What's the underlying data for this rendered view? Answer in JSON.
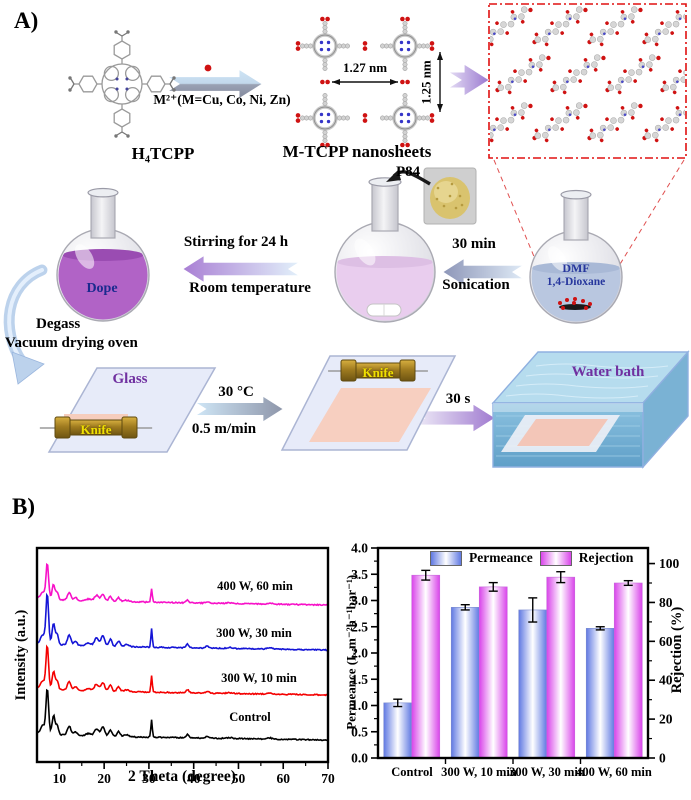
{
  "figure": {
    "panel_a_label": "A)",
    "panel_b_label": "B)"
  },
  "panelA": {
    "h4tcpp_label": "H₄TCPP",
    "metal_text": "M²⁺(M=Cu, Co, Ni, Zn)",
    "nanosheets_label": "M-TCPP nanosheets",
    "dim_horizontal": "1.27 nm",
    "dim_vertical": "1.25 nm",
    "p84_label": "P84",
    "dmf_line1": "DMF",
    "dmf_line2": "1,4-Dioxane",
    "sonication_time": "30 min",
    "sonication_label": "Sonication",
    "stirring_line1": "Stirring for 24 h",
    "stirring_line2": "Room temperature",
    "dope_label": "Dope",
    "degas_line1": "Degass",
    "degas_line2": "Vacuum drying oven",
    "glass_label": "Glass",
    "knife_label_1": "Knife",
    "knife_label_2": "Knife",
    "casting_temp": "30 °C",
    "casting_speed": "0.5 m/min",
    "immersion_time": "30 s",
    "water_bath_label": "Water bath",
    "colors": {
      "purple_text": "#7030a0",
      "knife_text": "#f0e000",
      "dope_text": "#1b2a8e",
      "dmf_text": "#27379d",
      "red_accent": "#cf1212"
    }
  },
  "chart_data": [
    {
      "type": "line",
      "title": "",
      "xlabel": "2 Theta (degree)",
      "ylabel": "Intensity (a.u.)",
      "xlim": [
        5,
        70
      ],
      "x_ticks": [
        10,
        20,
        30,
        40,
        50,
        60,
        70
      ],
      "x_minor_step": 5,
      "grid": false,
      "note": "Stacked XRD patterns, arbitrary intensity units, curves offset vertically; offset unit = curve spacing",
      "shared_peaks": [
        [
          6.3,
          0.18,
          0.7
        ],
        [
          7.3,
          1.0,
          0.42
        ],
        [
          8.7,
          0.42,
          0.45
        ],
        [
          9.5,
          0.2,
          0.4
        ],
        [
          12.2,
          0.2,
          0.55
        ],
        [
          13.6,
          0.08,
          0.5
        ],
        [
          16.5,
          0.05,
          0.8
        ],
        [
          18.3,
          0.16,
          0.65
        ],
        [
          19.7,
          0.2,
          0.6
        ],
        [
          21.4,
          0.14,
          0.5
        ],
        [
          23.2,
          0.11,
          0.5
        ],
        [
          25.0,
          0.04,
          0.8
        ],
        [
          30.6,
          0.38,
          0.22
        ],
        [
          38.6,
          0.07,
          0.45
        ],
        [
          43.0,
          0.045,
          0.5
        ],
        [
          48.0,
          0.02,
          0.8
        ],
        [
          57.0,
          0.025,
          0.8
        ]
      ],
      "series": [
        {
          "name": "Control",
          "color": "#000000",
          "offset": 0,
          "peak_scale": 1.0
        },
        {
          "name": "300 W, 10 min",
          "color": "#f40000",
          "offset": 1,
          "peak_scale": 0.95
        },
        {
          "name": "300 W, 30 min",
          "color": "#1414d6",
          "offset": 2,
          "peak_scale": 1.1
        },
        {
          "name": "400 W, 60 min",
          "color": "#f711c8",
          "offset": 3,
          "peak_scale": 0.78
        }
      ]
    },
    {
      "type": "bar",
      "title": "",
      "categories": [
        "Control",
        "300 W, 10 min",
        "300 W, 30 min",
        "400 W, 60 min"
      ],
      "series": [
        {
          "name": "Permeance",
          "axis": "left",
          "values": [
            1.05,
            2.87,
            2.82,
            2.47
          ],
          "errors": [
            0.07,
            0.05,
            0.23,
            0.03
          ],
          "color": "#6079e2"
        },
        {
          "name": "Rejection",
          "axis": "right",
          "values": [
            94,
            88,
            93,
            90
          ],
          "errors": [
            2.5,
            2.2,
            2.8,
            1.2
          ],
          "color": "#d944ea"
        }
      ],
      "ylabel_left": "Permeance (L.m⁻²h⁻¹bar⁻¹)",
      "ylabel_right": "Rejection (%)",
      "ylim_left": [
        0.0,
        4.0
      ],
      "ylim_right": [
        0,
        108
      ],
      "yticks_left": [
        "0.0",
        "0.5",
        "1.0",
        "1.5",
        "2.0",
        "2.5",
        "3.0",
        "3.5",
        "4.0"
      ],
      "yticks_right": [
        0,
        20,
        40,
        60,
        80,
        100
      ],
      "legend_position": "top-inside",
      "grid": false
    }
  ]
}
